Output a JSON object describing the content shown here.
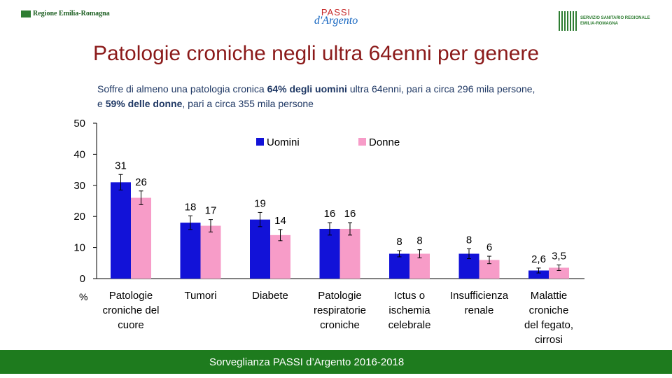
{
  "header": {
    "left_logo": "Regione Emilia-Romagna",
    "center_logo_line1": "PASSI",
    "center_logo_line2": "d'Argento",
    "right_logo_line1": "SERVIZIO SANITARIO REGIONALE",
    "right_logo_line2": "EMILIA-ROMAGNA"
  },
  "title": "Patologie croniche negli ultra 64enni per genere",
  "subtitle": {
    "part1": "Soffre di almeno una patologia cronica ",
    "bold1": "64% degli uomini",
    "part2": " ultra 64enni, pari a circa 296 mila persone,",
    "part3": "e ",
    "bold2": "59% delle donne",
    "part4": ", pari a circa 355 mila persone"
  },
  "footer": "Sorveglianza PASSI d’Argento 2016-2018",
  "colors": {
    "uomini": "#1212d8",
    "donne": "#f79cc8",
    "title": "#8b1a1a",
    "footer": "#1e7b1e"
  },
  "chart_data": {
    "type": "bar",
    "ylabel": "%",
    "ylim": [
      0,
      50
    ],
    "yticks": [
      0,
      10,
      20,
      30,
      40,
      50
    ],
    "legend_position": "top",
    "categories": [
      [
        "Patologie",
        "croniche del",
        "cuore"
      ],
      [
        "Tumori"
      ],
      [
        "Diabete"
      ],
      [
        "Patologie",
        "respiratorie",
        "croniche"
      ],
      [
        "Ictus o",
        "ischemia",
        "celebrale"
      ],
      [
        "Insufficienza",
        "renale"
      ],
      [
        "Malattie",
        "croniche",
        "del fegato,",
        "cirrosi"
      ]
    ],
    "series": [
      {
        "name": "Uomini",
        "values": [
          31,
          18,
          19,
          16,
          8,
          8,
          2.6
        ],
        "labels": [
          "31",
          "18",
          "19",
          "16",
          "8",
          "8",
          "2,6"
        ],
        "err": [
          2.5,
          2.2,
          2.3,
          2,
          1,
          1.6,
          0.8
        ]
      },
      {
        "name": "Donne",
        "values": [
          26,
          17,
          14,
          16,
          8,
          6,
          3.5
        ],
        "labels": [
          "26",
          "17",
          "14",
          "16",
          "8",
          "6",
          "3,5"
        ],
        "err": [
          2.2,
          2,
          1.8,
          2,
          1.3,
          1.2,
          0.9
        ]
      }
    ]
  }
}
